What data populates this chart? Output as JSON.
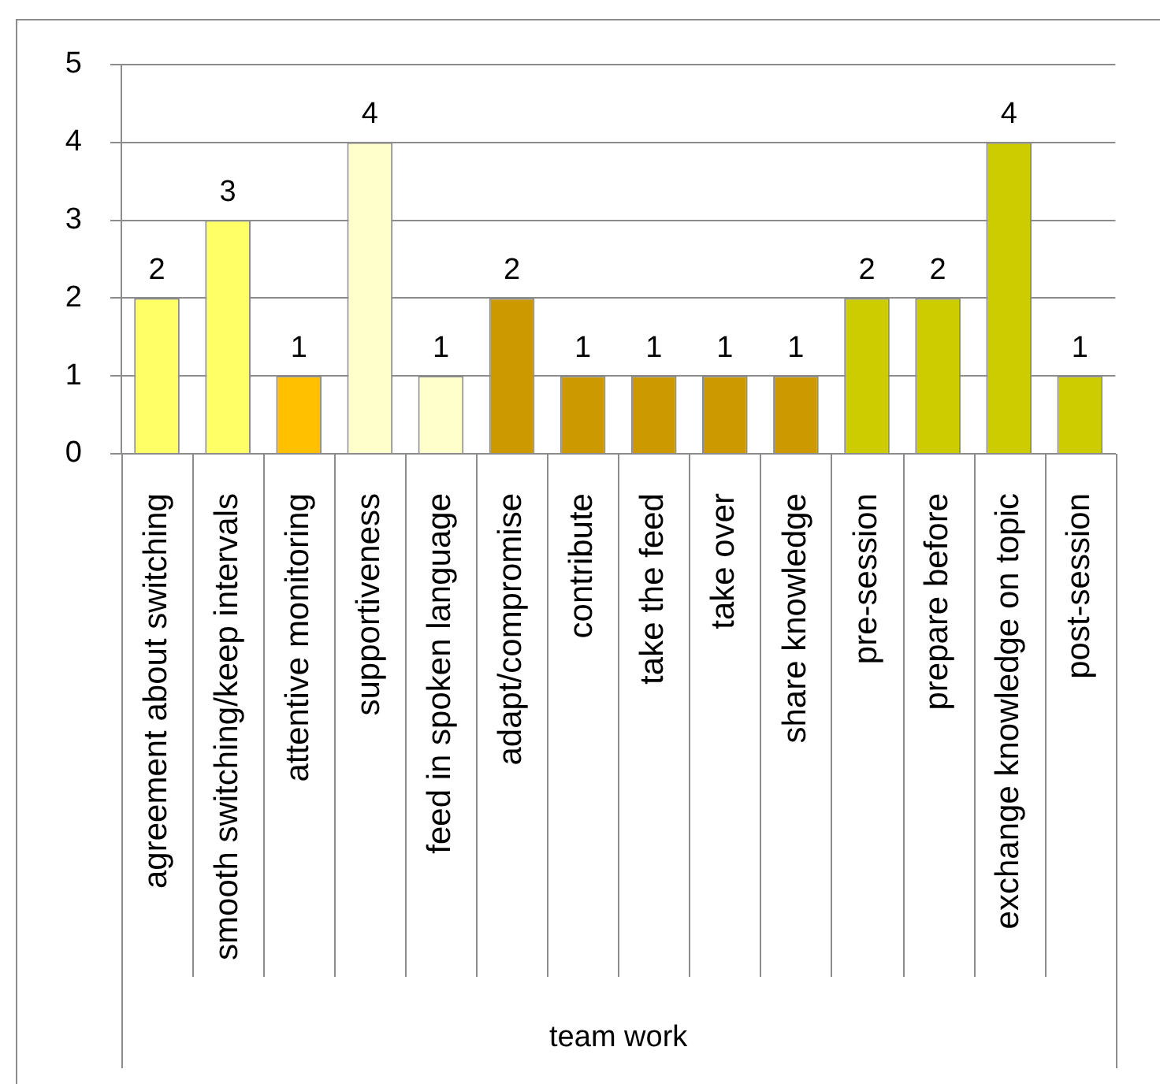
{
  "chart_data": {
    "type": "bar",
    "xlabel": "team work",
    "categories": [
      "agreement about switching",
      "smooth switching/keep intervals",
      "attentive monitoring",
      "supportiveness",
      "feed in spoken language",
      "adapt/compromise",
      "contribute",
      "take the feed",
      "take over",
      "share knowledge",
      "pre-session",
      "prepare before",
      "exchange knowledge on topic",
      "post-session"
    ],
    "values": [
      2,
      3,
      1,
      4,
      1,
      2,
      1,
      1,
      1,
      1,
      2,
      2,
      4,
      1
    ],
    "colors": [
      "#ffff66",
      "#ffff66",
      "#ffc000",
      "#ffffcc",
      "#ffffcc",
      "#cc9900",
      "#cc9900",
      "#cc9900",
      "#cc9900",
      "#cc9900",
      "#cccc00",
      "#cccc00",
      "#cccc00",
      "#cccc00"
    ],
    "ylim": [
      0,
      5
    ],
    "yticks": [
      0,
      1,
      2,
      3,
      4,
      5
    ],
    "grid": "y",
    "data_labels": true
  }
}
